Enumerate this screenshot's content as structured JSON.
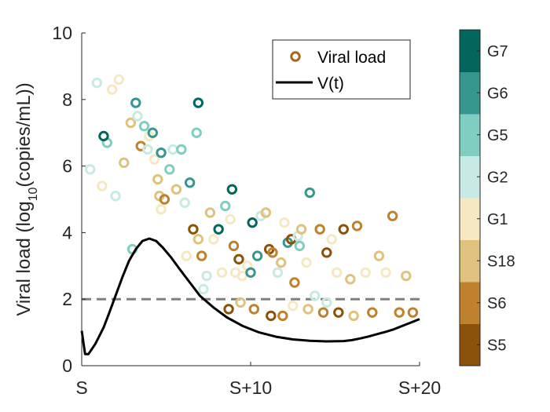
{
  "chart_data": {
    "type": "scatter",
    "title": "",
    "xlabel": "",
    "ylabel": "Viral load (log10(copies/mL))",
    "ylabel_parts": {
      "before": "Viral load (log",
      "sub": "10",
      "after": "(copies/mL))"
    },
    "xlim": [
      0,
      20
    ],
    "ylim": [
      0,
      10
    ],
    "x_ticks": [
      0,
      10,
      20
    ],
    "x_tick_labels": [
      "S",
      "S+10",
      "S+20"
    ],
    "y_ticks": [
      0,
      2,
      4,
      6,
      8,
      10
    ],
    "y_tick_labels": [
      "0",
      "2",
      "4",
      "6",
      "8",
      "10"
    ],
    "grid": false,
    "threshold": 2,
    "legend": {
      "placement": "top-right",
      "entries": [
        {
          "label": "Viral load",
          "kind": "marker",
          "color": "#A6611A"
        },
        {
          "label": "V(t)",
          "kind": "line",
          "color": "#000000"
        }
      ]
    },
    "colorbar": {
      "labels": [
        "S5",
        "S6",
        "S18",
        "G1",
        "G2",
        "G5",
        "G6",
        "G7"
      ],
      "colors": [
        "#8C510A",
        "#BF812D",
        "#DFC27D",
        "#F6E8C3",
        "#C7EAE5",
        "#80CDC1",
        "#35978F",
        "#01665E"
      ]
    },
    "series": [
      {
        "name": "Viral load",
        "type": "scatter",
        "points": [
          [
            0.5,
            5.9,
            4
          ],
          [
            0.9,
            8.5,
            4
          ],
          [
            1.2,
            5.4,
            3
          ],
          [
            1.5,
            6.7,
            5
          ],
          [
            1.8,
            8.3,
            3
          ],
          [
            2.2,
            8.6,
            3
          ],
          [
            2.5,
            6.1,
            2
          ],
          [
            2.9,
            7.3,
            2
          ],
          [
            3.2,
            7.9,
            6
          ],
          [
            3.3,
            7.5,
            4
          ],
          [
            3.5,
            6.6,
            1
          ],
          [
            3.7,
            7.2,
            5
          ],
          [
            3.9,
            6.5,
            4
          ],
          [
            4.0,
            6.9,
            3
          ],
          [
            4.2,
            7.0,
            6
          ],
          [
            4.3,
            6.2,
            3
          ],
          [
            4.5,
            5.6,
            2
          ],
          [
            4.6,
            5.1,
            2
          ],
          [
            4.7,
            4.7,
            3
          ],
          [
            4.9,
            5.0,
            1
          ],
          [
            5.2,
            5.9,
            5
          ],
          [
            5.4,
            6.5,
            4
          ],
          [
            5.6,
            5.3,
            2
          ],
          [
            5.9,
            6.5,
            5
          ],
          [
            6.1,
            4.9,
            4
          ],
          [
            6.4,
            5.5,
            6
          ],
          [
            6.6,
            4.1,
            0
          ],
          [
            6.8,
            7.0,
            5
          ],
          [
            6.9,
            3.8,
            2
          ],
          [
            7.1,
            3.3,
            1
          ],
          [
            7.4,
            2.7,
            4
          ],
          [
            7.6,
            4.6,
            2
          ],
          [
            7.8,
            3.8,
            3
          ],
          [
            8.1,
            4.1,
            7
          ],
          [
            8.3,
            2.8,
            3
          ],
          [
            8.5,
            4.8,
            5
          ],
          [
            8.8,
            4.4,
            3
          ],
          [
            9.0,
            3.6,
            1
          ],
          [
            9.1,
            2.8,
            3
          ],
          [
            9.3,
            3.2,
            0
          ],
          [
            9.5,
            2.7,
            3
          ],
          [
            9.8,
            3.0,
            3
          ],
          [
            10.1,
            4.3,
            7
          ],
          [
            10.4,
            3.3,
            6
          ],
          [
            10.6,
            4.5,
            4
          ],
          [
            10.9,
            4.6,
            2
          ],
          [
            11.1,
            3.5,
            0
          ],
          [
            11.3,
            3.4,
            1
          ],
          [
            11.6,
            2.8,
            4
          ],
          [
            11.8,
            3.1,
            2
          ],
          [
            12.0,
            4.3,
            3
          ],
          [
            12.2,
            3.7,
            6
          ],
          [
            12.4,
            3.8,
            0
          ],
          [
            12.6,
            2.5,
            1
          ],
          [
            12.8,
            3.9,
            4
          ],
          [
            13.0,
            4.1,
            2
          ],
          [
            13.3,
            3.1,
            3
          ],
          [
            13.5,
            5.2,
            6
          ],
          [
            13.8,
            2.1,
            4
          ],
          [
            14.1,
            4.1,
            1
          ],
          [
            14.5,
            3.4,
            0
          ],
          [
            14.8,
            3.8,
            3
          ],
          [
            15.1,
            2.8,
            3
          ],
          [
            15.5,
            4.1,
            0
          ],
          [
            15.9,
            2.6,
            2
          ],
          [
            16.3,
            4.2,
            1
          ],
          [
            16.8,
            2.8,
            3
          ],
          [
            17.2,
            1.6,
            1
          ],
          [
            17.6,
            3.3,
            2
          ],
          [
            18.0,
            2.8,
            3
          ],
          [
            18.4,
            4.5,
            1
          ],
          [
            18.8,
            1.6,
            1
          ],
          [
            19.2,
            2.7,
            2
          ],
          [
            19.6,
            1.6,
            1
          ],
          [
            8.7,
            1.7,
            0
          ],
          [
            9.4,
            1.9,
            2
          ],
          [
            10.2,
            1.7,
            1
          ],
          [
            11.2,
            1.5,
            0
          ],
          [
            11.9,
            1.5,
            1
          ],
          [
            12.5,
            1.8,
            3
          ],
          [
            13.4,
            1.7,
            2
          ],
          [
            14.3,
            1.6,
            1
          ],
          [
            15.2,
            1.6,
            0
          ],
          [
            16.1,
            1.5,
            2
          ],
          [
            4.7,
            6.4,
            6
          ],
          [
            6.2,
            3.3,
            3
          ],
          [
            7.2,
            2.3,
            4
          ],
          [
            2.0,
            5.1,
            4
          ],
          [
            3.0,
            3.5,
            5
          ],
          [
            1.3,
            6.9,
            7
          ],
          [
            6.9,
            7.9,
            7
          ],
          [
            8.9,
            5.3,
            7
          ],
          [
            10.0,
            2.8,
            6
          ],
          [
            14.5,
            1.9,
            4
          ],
          [
            12.9,
            3.6,
            5
          ]
        ]
      },
      {
        "name": "V(t)",
        "type": "line",
        "x": [
          0,
          0.2,
          0.4,
          0.6,
          0.8,
          1.0,
          1.3,
          1.6,
          2.0,
          2.4,
          2.8,
          3.2,
          3.6,
          4.0,
          4.4,
          4.8,
          5.3,
          5.8,
          6.4,
          7.0,
          7.8,
          8.6,
          9.5,
          10.5,
          11.5,
          12.5,
          13.5,
          14.5,
          15.5,
          16.0,
          16.5,
          17.0,
          17.5,
          18.0,
          18.5,
          19.0,
          19.5,
          20.0
        ],
        "y": [
          1.05,
          0.35,
          0.35,
          0.5,
          0.65,
          0.85,
          1.15,
          1.55,
          2.1,
          2.65,
          3.15,
          3.5,
          3.75,
          3.82,
          3.75,
          3.55,
          3.25,
          2.9,
          2.5,
          2.1,
          1.75,
          1.45,
          1.2,
          1.0,
          0.87,
          0.79,
          0.75,
          0.73,
          0.74,
          0.77,
          0.82,
          0.88,
          0.95,
          1.02,
          1.1,
          1.2,
          1.3,
          1.4
        ]
      }
    ]
  }
}
